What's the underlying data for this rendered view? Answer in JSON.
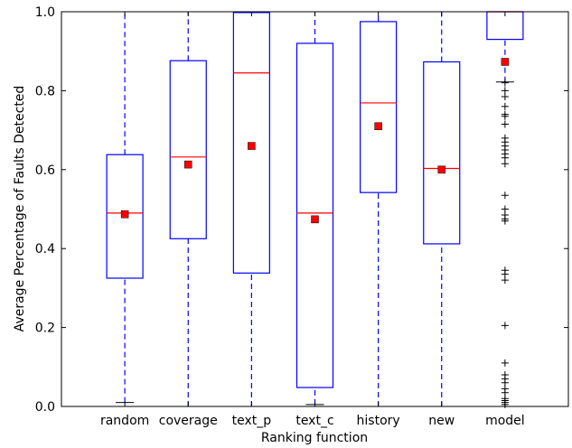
{
  "chart_data": {
    "type": "box",
    "xlabel": "Ranking function",
    "ylabel": "Average Percentage of Faults Detected",
    "ylim": [
      0.0,
      1.0
    ],
    "y_ticks": [
      "0.0",
      "0.2",
      "0.4",
      "0.6",
      "0.8",
      "1.0"
    ],
    "categories": [
      "random",
      "coverage",
      "text_p",
      "text_c",
      "history",
      "new",
      "model"
    ],
    "series": [
      {
        "category": "random",
        "whisker_low": 0.01,
        "q1": 0.325,
        "median": 0.49,
        "q3": 0.638,
        "whisker_high": 1.0,
        "mean": 0.487,
        "outliers": []
      },
      {
        "category": "coverage",
        "whisker_low": 0.0,
        "q1": 0.425,
        "median": 0.632,
        "q3": 0.876,
        "whisker_high": 1.0,
        "mean": 0.613,
        "outliers": []
      },
      {
        "category": "text_p",
        "whisker_low": 0.0,
        "q1": 0.338,
        "median": 0.845,
        "q3": 0.998,
        "whisker_high": 0.998,
        "mean": 0.66,
        "outliers": []
      },
      {
        "category": "text_c",
        "whisker_low": 0.005,
        "q1": 0.048,
        "median": 0.49,
        "q3": 0.92,
        "whisker_high": 1.0,
        "mean": 0.474,
        "outliers": []
      },
      {
        "category": "history",
        "whisker_low": 0.0,
        "q1": 0.542,
        "median": 0.769,
        "q3": 0.975,
        "whisker_high": 1.0,
        "mean": 0.71,
        "outliers": []
      },
      {
        "category": "new",
        "whisker_low": 0.0,
        "q1": 0.412,
        "median": 0.603,
        "q3": 0.873,
        "whisker_high": 1.0,
        "mean": 0.6,
        "outliers": []
      },
      {
        "category": "model",
        "whisker_low": 0.822,
        "q1": 0.93,
        "median": 1.0,
        "q3": 1.0,
        "whisker_high": 1.0,
        "mean": 0.873,
        "outliers": [
          0.82,
          0.8,
          0.785,
          0.76,
          0.74,
          0.735,
          0.715,
          0.68,
          0.67,
          0.66,
          0.65,
          0.64,
          0.63,
          0.615,
          0.535,
          0.5,
          0.485,
          0.475,
          0.47,
          0.345,
          0.335,
          0.32,
          0.205,
          0.11,
          0.08,
          0.07,
          0.06,
          0.045,
          0.035,
          0.02,
          0.015,
          0.01,
          0.005
        ]
      }
    ],
    "colors": {
      "box": "#0000ff",
      "median": "#ff0000",
      "mean_marker": "#ff0000",
      "outlier": "#000000"
    },
    "mean_marker_shape": "square",
    "outlier_marker_shape": "plus",
    "grid": false,
    "legend": "none"
  }
}
